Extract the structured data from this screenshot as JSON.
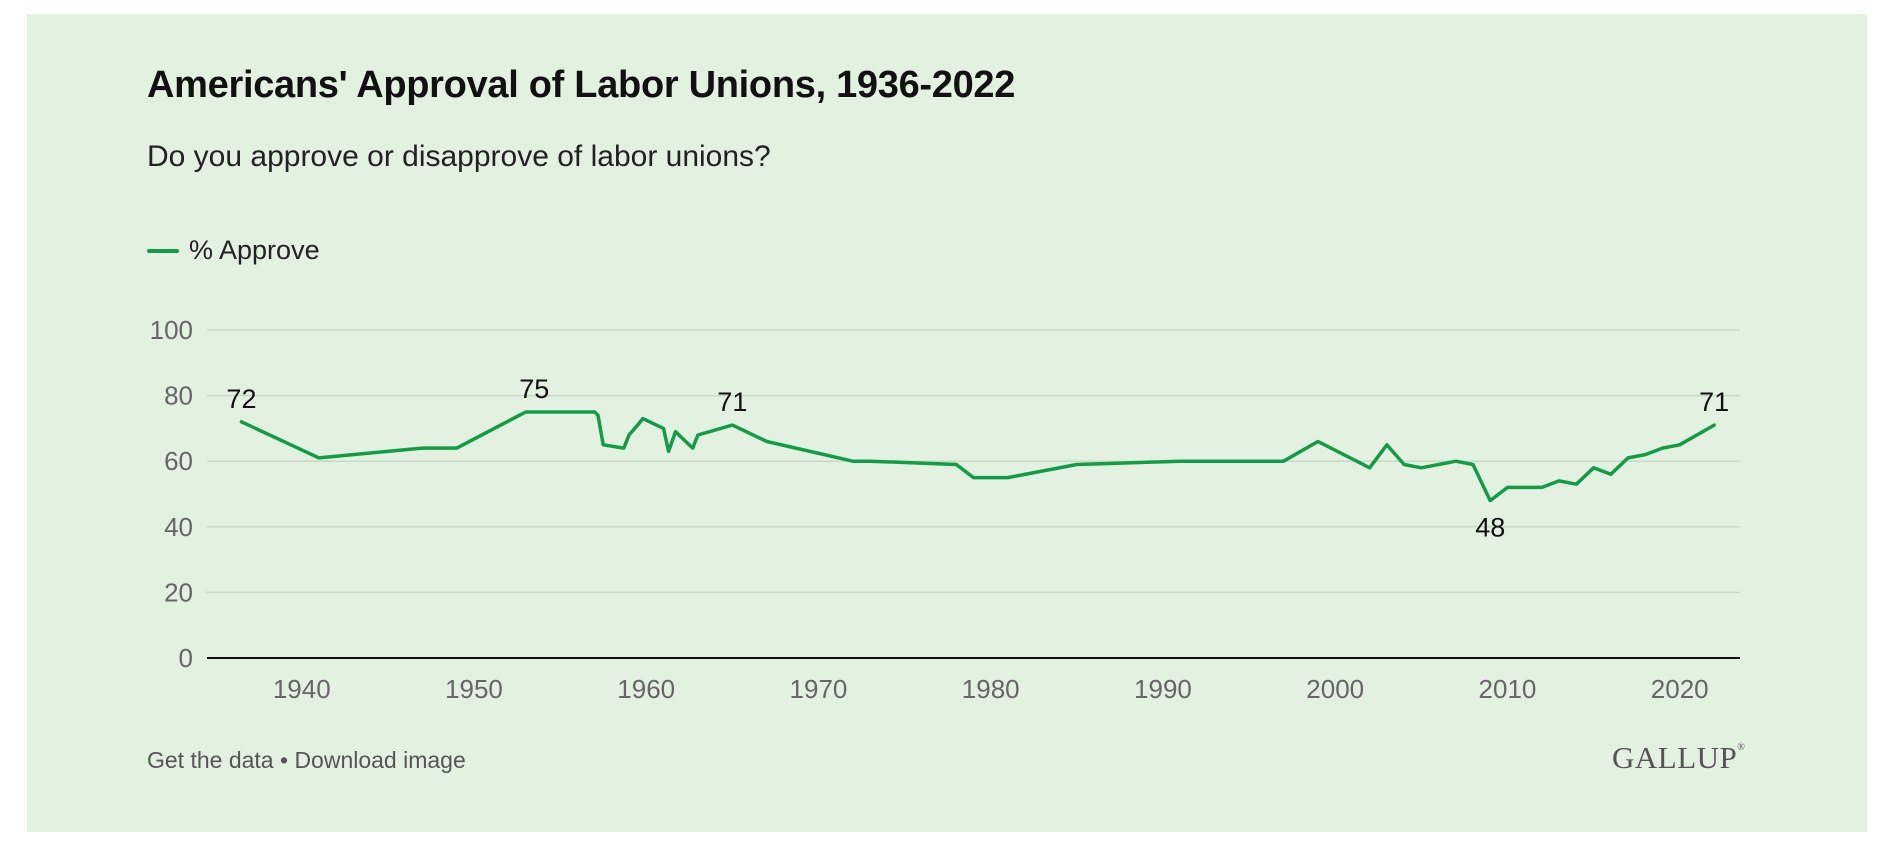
{
  "chart_data": {
    "type": "line",
    "title": "Americans' Approval of Labor Unions, 1936-2022",
    "subtitle": "Do you approve or disapprove of labor unions?",
    "series": [
      {
        "name": "% Approve",
        "color": "#159a4a",
        "points": [
          [
            1936.5,
            72
          ],
          [
            1941,
            61
          ],
          [
            1947,
            64
          ],
          [
            1949,
            64
          ],
          [
            1953,
            75
          ],
          [
            1954.5,
            75
          ],
          [
            1957,
            75
          ],
          [
            1957.2,
            74
          ],
          [
            1957.5,
            65
          ],
          [
            1958.7,
            64
          ],
          [
            1959,
            68
          ],
          [
            1959.5,
            71
          ],
          [
            1959.8,
            73
          ],
          [
            1961,
            70
          ],
          [
            1961.3,
            63
          ],
          [
            1961.7,
            69
          ],
          [
            1962.7,
            64
          ],
          [
            1963,
            68
          ],
          [
            1965,
            71
          ],
          [
            1967,
            66
          ],
          [
            1972,
            60
          ],
          [
            1973,
            60
          ],
          [
            1978,
            59
          ],
          [
            1979,
            55
          ],
          [
            1981,
            55
          ],
          [
            1985,
            59
          ],
          [
            1991,
            60
          ],
          [
            1997,
            60
          ],
          [
            1999,
            66
          ],
          [
            2002,
            58
          ],
          [
            2003,
            65
          ],
          [
            2004,
            59
          ],
          [
            2005,
            58
          ],
          [
            2007,
            60
          ],
          [
            2008,
            59
          ],
          [
            2009,
            48
          ],
          [
            2010,
            52
          ],
          [
            2011,
            52
          ],
          [
            2012,
            52
          ],
          [
            2013,
            54
          ],
          [
            2014,
            53
          ],
          [
            2015,
            58
          ],
          [
            2016,
            56
          ],
          [
            2017,
            61
          ],
          [
            2018,
            62
          ],
          [
            2019,
            64
          ],
          [
            2020,
            65
          ],
          [
            2022,
            71
          ]
        ]
      }
    ],
    "annotations": [
      {
        "x": 1936.5,
        "y": 72,
        "label": "72",
        "position": "above"
      },
      {
        "x": 1953.5,
        "y": 75,
        "label": "75",
        "position": "above"
      },
      {
        "x": 1965,
        "y": 71,
        "label": "71",
        "position": "above"
      },
      {
        "x": 2009,
        "y": 48,
        "label": "48",
        "position": "below"
      },
      {
        "x": 2022,
        "y": 71,
        "label": "71",
        "position": "above"
      }
    ],
    "x_ticks": [
      1940,
      1950,
      1960,
      1970,
      1980,
      1990,
      2000,
      2010,
      2020
    ],
    "y_ticks": [
      0,
      20,
      40,
      60,
      80,
      100
    ],
    "xlim": [
      1934.5,
      2023.5
    ],
    "ylim": [
      0,
      100
    ],
    "grid": true,
    "legend_position": "top-left"
  },
  "footer": {
    "get_data": "Get the data",
    "separator": " • ",
    "download": "Download image"
  },
  "brand": {
    "name": "GALLUP",
    "mark": "®"
  }
}
